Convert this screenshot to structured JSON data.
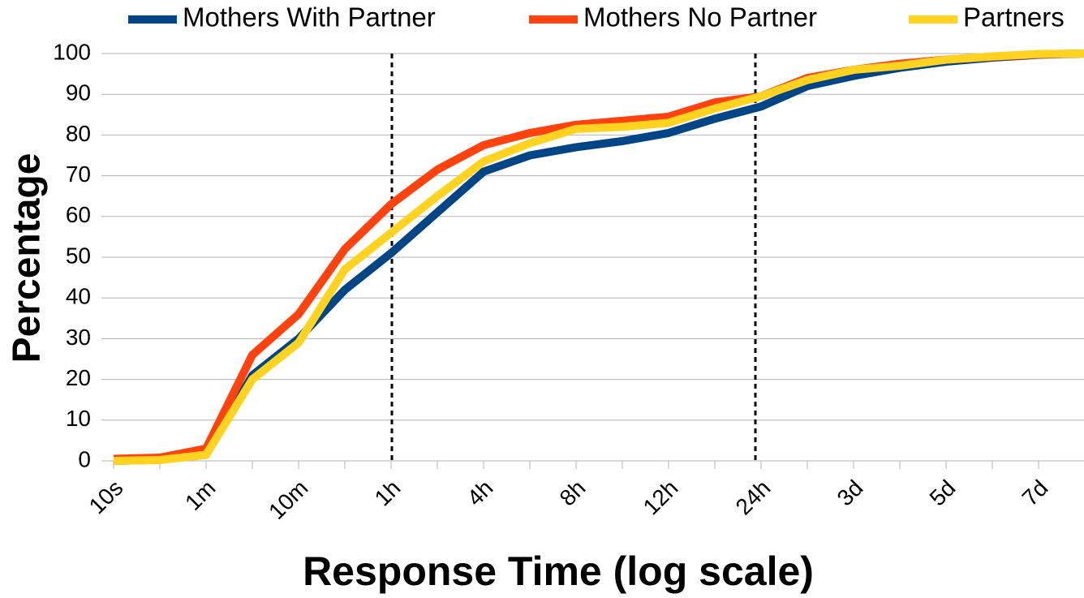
{
  "chart_data": {
    "type": "line",
    "x_label": "Response Time (log scale)",
    "y_label": "Percentage",
    "categories": [
      "10s",
      null,
      "1m",
      null,
      "10m",
      null,
      "1h",
      null,
      "4h",
      null,
      "8h",
      null,
      "12h",
      null,
      "24h",
      null,
      "3d",
      null,
      "5d",
      null,
      "7d",
      null
    ],
    "series": [
      {
        "name": "Mothers With Partner",
        "color": "#004586",
        "values": [
          0,
          0.3,
          1.5,
          21,
          30,
          42,
          51,
          61,
          71,
          75,
          77,
          78.5,
          80.5,
          84,
          87,
          92,
          94.5,
          96.5,
          98,
          99,
          99.7,
          100
        ]
      },
      {
        "name": "Mothers No Partner",
        "color": "#ff420e",
        "values": [
          0.5,
          0.8,
          3,
          26,
          36,
          52,
          63,
          71.5,
          77.5,
          80.5,
          82.5,
          83.5,
          84.5,
          88,
          89.5,
          94,
          96,
          97.5,
          98.5,
          99.2,
          99.8,
          100
        ]
      },
      {
        "name": "Partners",
        "color": "#ffd320",
        "values": [
          0,
          0.2,
          1.5,
          20,
          29,
          47,
          56,
          65,
          73.5,
          78,
          81.5,
          82,
          83,
          86.5,
          89.5,
          93.5,
          96,
          97,
          98.5,
          99.3,
          99.9,
          100
        ]
      }
    ],
    "ylim": [
      0,
      100
    ],
    "yticks": [
      0,
      10,
      20,
      30,
      40,
      50,
      60,
      70,
      80,
      90,
      100
    ],
    "grid": true,
    "legend": "top"
  }
}
